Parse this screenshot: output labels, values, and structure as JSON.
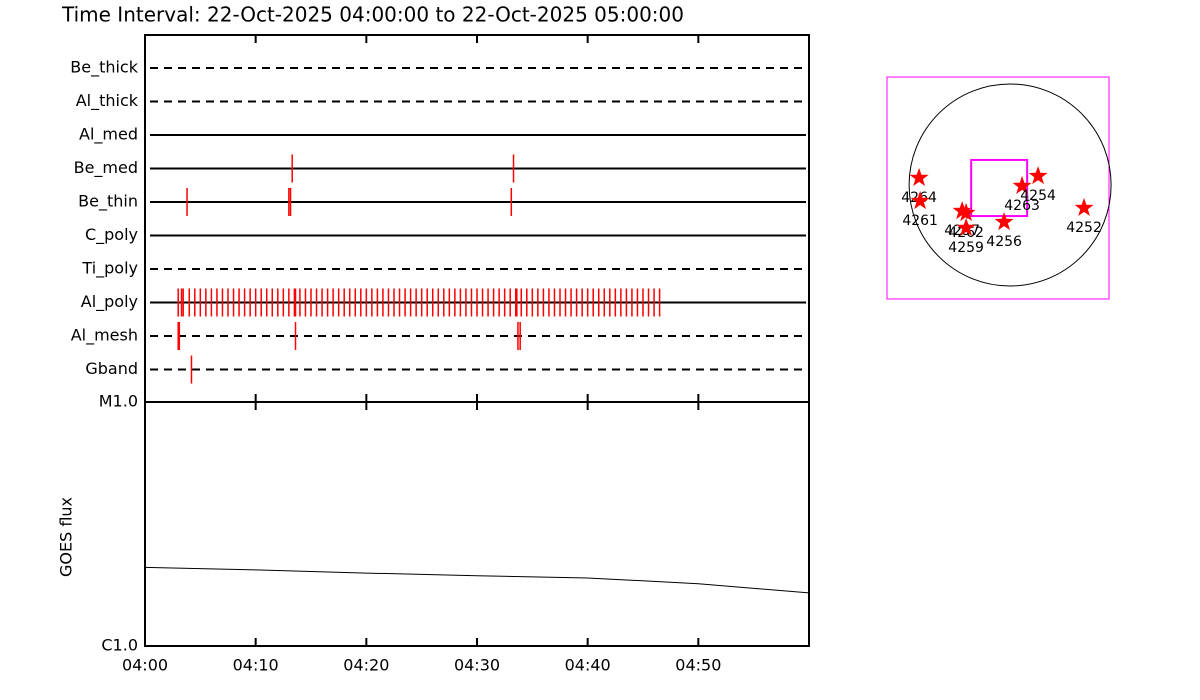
{
  "chart_data": [
    {
      "type": "timeline",
      "title": "Time Interval: 22-Oct-2025 04:00:00 to 22-Oct-2025 05:00:00",
      "color": "#ff0000",
      "xlim": [
        0,
        60
      ],
      "xticks": [
        0,
        10,
        20,
        30,
        40,
        50
      ],
      "rows": [
        {
          "name": "Be_thick",
          "line_style": "dashed",
          "events": []
        },
        {
          "name": "Al_thick",
          "line_style": "dashed",
          "events": []
        },
        {
          "name": "Al_med",
          "line_style": "solid",
          "events": []
        },
        {
          "name": "Be_med",
          "line_style": "solid",
          "events": [
            13.3,
            33.3
          ]
        },
        {
          "name": "Be_thin",
          "line_style": "solid",
          "events": [
            3.8,
            13.0,
            13.15,
            33.1
          ]
        },
        {
          "name": "C_poly",
          "line_style": "solid",
          "events": []
        },
        {
          "name": "Ti_poly",
          "line_style": "dashed",
          "events": []
        },
        {
          "name": "Al_poly",
          "line_style": "solid",
          "events": [
            3.0,
            3.3,
            3.45,
            4.0,
            4.5,
            5.0,
            5.5,
            6.0,
            6.5,
            7.0,
            7.5,
            8.0,
            8.5,
            9.0,
            9.5,
            10.0,
            10.5,
            11.0,
            11.5,
            12.0,
            12.5,
            13.0,
            13.5,
            13.6,
            14.0,
            14.5,
            15.0,
            15.5,
            16.0,
            16.5,
            17.0,
            17.5,
            18.0,
            18.5,
            19.0,
            19.5,
            20.0,
            20.5,
            21.0,
            21.5,
            22.0,
            22.5,
            23.0,
            23.5,
            24.0,
            24.5,
            25.0,
            25.5,
            26.0,
            26.5,
            27.0,
            27.5,
            28.0,
            28.5,
            29.0,
            29.5,
            30.0,
            30.5,
            31.0,
            31.5,
            32.0,
            32.5,
            33.0,
            33.5,
            33.6,
            34.0,
            34.5,
            35.0,
            35.5,
            36.0,
            36.5,
            37.0,
            37.5,
            38.0,
            38.5,
            39.0,
            39.5,
            40.0,
            40.5,
            41.0,
            41.5,
            42.0,
            42.5,
            43.0,
            43.5,
            44.0,
            44.5,
            45.0,
            45.5,
            46.0,
            46.5
          ]
        },
        {
          "name": "Al_mesh",
          "line_style": "dashed",
          "events": [
            3.0,
            3.1,
            13.6,
            33.7,
            33.9
          ]
        },
        {
          "name": "Gband",
          "line_style": "dashed",
          "events": [
            4.2
          ]
        }
      ]
    },
    {
      "type": "line",
      "log_scale": true,
      "y_label": "GOES flux",
      "xlim": [
        0,
        60
      ],
      "xticks": [
        {
          "value": 0,
          "label": "04:00"
        },
        {
          "value": 10,
          "label": "04:10"
        },
        {
          "value": 20,
          "label": "04:20"
        },
        {
          "value": 30,
          "label": "04:30"
        },
        {
          "value": 40,
          "label": "04:40"
        },
        {
          "value": 50,
          "label": "04:50"
        }
      ],
      "ylim": [
        1e-06,
        1e-05
      ],
      "yticks": [
        {
          "value": 1e-06,
          "label": "C1.0"
        },
        {
          "value": 1e-05,
          "label": "M1.0"
        }
      ],
      "x": [
        0,
        10,
        20,
        30,
        40,
        50,
        60
      ],
      "series": [
        {
          "name": "GOES",
          "color": "#000000",
          "values": [
            2.1e-06,
            2.05e-06,
            1.99e-06,
            1.94e-06,
            1.9e-06,
            1.8e-06,
            1.65e-06
          ]
        }
      ]
    },
    {
      "type": "map",
      "color": "#ff0000",
      "box_color": "#ff00ff",
      "xlim": [
        -1170,
        940
      ],
      "ylim": [
        -1083,
        1026
      ],
      "solar_radius": 960,
      "fov": {
        "xlim": [
          -370,
          162
        ],
        "ylim": [
          -295,
          238
        ]
      },
      "regions": [
        {
          "label": "4264",
          "x": -865,
          "y": 67
        },
        {
          "label": "4261",
          "x": -855,
          "y": -152
        },
        {
          "label": "4257",
          "x": -456,
          "y": -247
        },
        {
          "label": "4262",
          "x": -418,
          "y": -266
        },
        {
          "label": "4259",
          "x": -418,
          "y": -408
        },
        {
          "label": "4256",
          "x": -57,
          "y": -352
        },
        {
          "label": "4263",
          "x": 114,
          "y": -9
        },
        {
          "label": "4254",
          "x": 266,
          "y": 85
        },
        {
          "label": "4252",
          "x": 703,
          "y": -218
        }
      ]
    }
  ]
}
